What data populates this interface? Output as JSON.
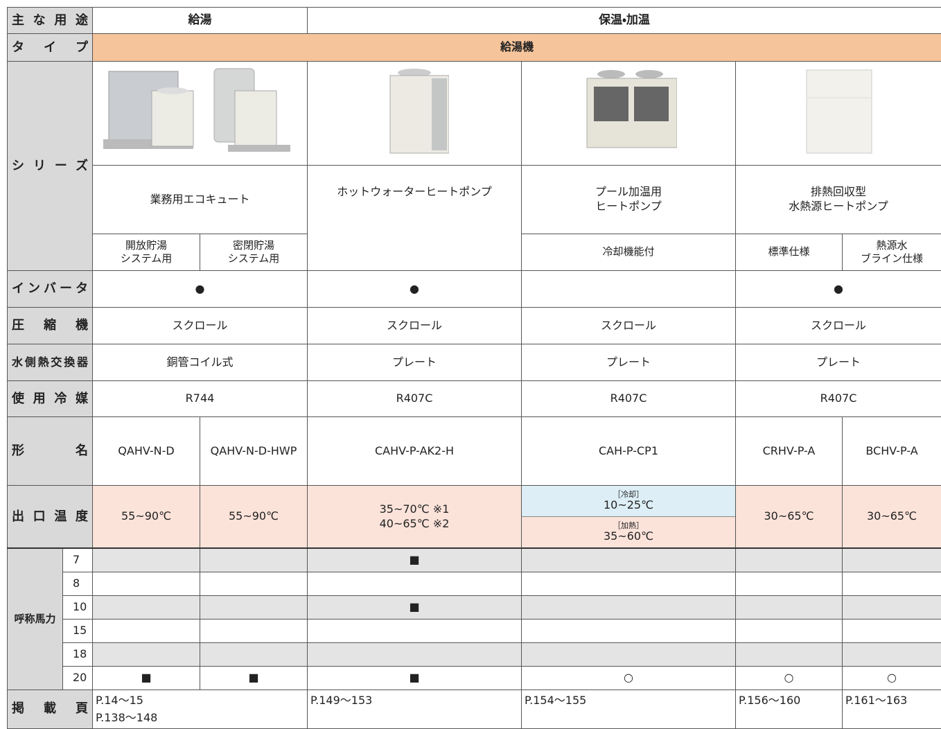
{
  "table": {
    "purpose": {
      "label": "主な用途",
      "values": [
        "給湯",
        "保温・加温"
      ]
    },
    "type": {
      "label": "タイプ",
      "value": "給湯機"
    },
    "series": {
      "label": "シリーズ",
      "names": [
        "業務用エコキュート",
        "ホットウォーターヒートポンプ",
        "プール加温用\nヒートポンプ",
        "排熱回収型\n水熱源ヒートポンプ"
      ],
      "variants": [
        "開放貯湯\nシステム用",
        "密閉貯湯\nシステム用",
        "冷却機能付",
        "標準仕様",
        "熱源水\nブライン仕様"
      ]
    },
    "inverter": {
      "label": "インバータ",
      "values": [
        "●",
        "●",
        "●"
      ]
    },
    "compressor": {
      "label": "圧縮機",
      "values": [
        "スクロール",
        "スクロール",
        "スクロール",
        "スクロール"
      ]
    },
    "heat_exchanger": {
      "label": "水側熱交換器",
      "values": [
        "銅管コイル式",
        "プレート",
        "プレート",
        "プレート"
      ]
    },
    "refrigerant": {
      "label": "使用冷媒",
      "values": [
        "R744",
        "R407C",
        "R407C",
        "R407C"
      ]
    },
    "model": {
      "label": "形名",
      "values": [
        "QAHV-N-D",
        "QAHV-N-D-HWP",
        "CAHV-P-AK2-H",
        "CAH-P-CP1",
        "CRHV-P-A",
        "BCHV-P-A"
      ]
    },
    "outlet_temp": {
      "label": "出口温度",
      "values": [
        "55~90℃",
        "55~90℃",
        "35~70℃ ※1\n40~65℃ ※2",
        "30~65℃",
        "30~65℃"
      ],
      "pool": {
        "cooling_label": "［冷却］",
        "cooling": "10~25℃",
        "heating_label": "［加熱］",
        "heating": "35~60℃"
      }
    },
    "horsepower": {
      "label": "呼称馬力",
      "rows": [
        {
          "hp": 7,
          "marks": [
            null,
            null,
            "■",
            null,
            null,
            null
          ]
        },
        {
          "hp": 8,
          "marks": [
            null,
            null,
            null,
            null,
            null,
            null
          ]
        },
        {
          "hp": 10,
          "marks": [
            null,
            null,
            "■",
            null,
            null,
            null
          ]
        },
        {
          "hp": 15,
          "marks": [
            null,
            null,
            null,
            null,
            null,
            null
          ]
        },
        {
          "hp": 18,
          "marks": [
            null,
            null,
            null,
            null,
            null,
            null
          ]
        },
        {
          "hp": 20,
          "marks": [
            "■",
            "■",
            "■",
            "○",
            "○",
            "○"
          ]
        }
      ]
    },
    "pages": {
      "label": "掲載頁",
      "values": [
        "P.14～15\nP.138～148",
        "P.149～153",
        "P.154～155",
        "P.156～160",
        "P.161～163"
      ]
    }
  }
}
